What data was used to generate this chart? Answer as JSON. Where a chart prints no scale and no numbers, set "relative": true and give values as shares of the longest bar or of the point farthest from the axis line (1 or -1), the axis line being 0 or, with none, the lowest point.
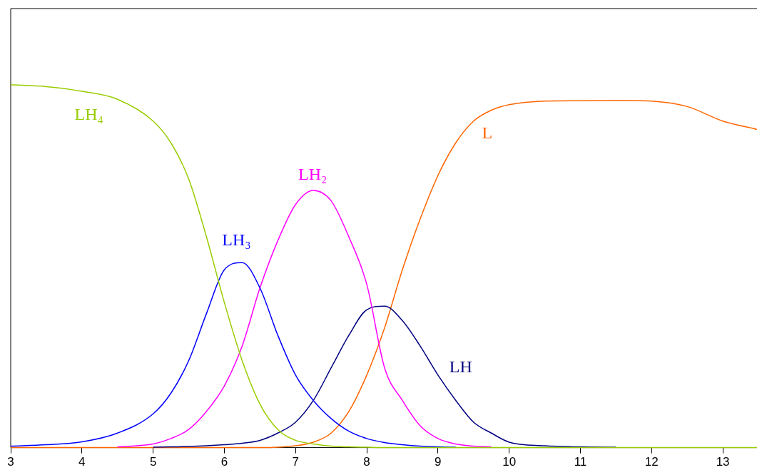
{
  "chart_data": {
    "type": "line",
    "relative": true,
    "xlim": [
      3,
      13.48
    ],
    "xticks": [
      3,
      4,
      5,
      6,
      7,
      8,
      9,
      10,
      11,
      12,
      13
    ],
    "grid": false,
    "legend": false,
    "marker": "none",
    "line_style": "solid",
    "x": [
      3,
      3.5,
      4,
      4.5,
      5,
      5.25,
      5.5,
      5.75,
      6,
      6.25,
      6.5,
      6.75,
      7,
      7.25,
      7.5,
      7.75,
      8,
      8.25,
      8.5,
      8.75,
      9,
      9.25,
      9.5,
      9.75,
      10,
      10.5,
      11,
      11.5,
      12,
      12.5,
      13,
      13.48
    ],
    "series": [
      {
        "name": "LH₄",
        "color": "#99cc00",
        "values": [
          1.0,
          0.995,
          0.982,
          0.96,
          0.9,
          0.84,
          0.74,
          0.58,
          0.4,
          0.24,
          0.12,
          0.05,
          0.02,
          0.01,
          0.004,
          0.002,
          0.001,
          0,
          0,
          0,
          0,
          0,
          0,
          0,
          0,
          0,
          0,
          0,
          0,
          0,
          0,
          0
        ]
      },
      {
        "name": "LH₃",
        "color": "#0000ff",
        "values": [
          0.004,
          0.008,
          0.016,
          0.04,
          0.093,
          0.15,
          0.24,
          0.37,
          0.49,
          0.51,
          0.44,
          0.31,
          0.2,
          0.13,
          0.08,
          0.045,
          0.025,
          0.014,
          0.008,
          0.004,
          0.002,
          0.001,
          null,
          null,
          null,
          null,
          null,
          null,
          null,
          null,
          null,
          null
        ]
      },
      {
        "name": "LH₂",
        "color": "#ff00ff",
        "values": [
          null,
          null,
          null,
          0.002,
          0.01,
          0.025,
          0.05,
          0.1,
          0.17,
          0.28,
          0.44,
          0.57,
          0.67,
          0.709,
          0.68,
          0.58,
          0.45,
          0.22,
          0.13,
          0.06,
          0.025,
          0.01,
          0.004,
          0.002,
          null,
          null,
          null,
          null,
          null,
          null,
          null,
          null
        ]
      },
      {
        "name": "LH",
        "color": "#000080",
        "values": [
          null,
          null,
          null,
          null,
          0.001,
          0.002,
          0.003,
          0.005,
          0.008,
          0.012,
          0.02,
          0.04,
          0.07,
          0.13,
          0.22,
          0.31,
          0.38,
          0.39,
          0.35,
          0.28,
          0.2,
          0.13,
          0.07,
          0.04,
          0.015,
          0.005,
          0.002,
          0.001,
          null,
          null,
          null,
          null
        ]
      },
      {
        "name": "L",
        "color": "#ff6600",
        "values": [
          0,
          0,
          0,
          0,
          0,
          0,
          0,
          0,
          0,
          0,
          0,
          0.001,
          0.005,
          0.015,
          0.04,
          0.1,
          0.2,
          0.33,
          0.49,
          0.63,
          0.75,
          0.84,
          0.9,
          0.93,
          0.945,
          0.955,
          0.956,
          0.957,
          0.955,
          0.94,
          0.9,
          0.877
        ]
      }
    ]
  }
}
